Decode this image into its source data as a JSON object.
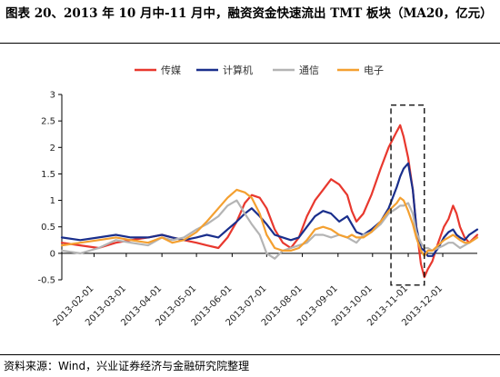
{
  "title": "图表 20、2013 年 10 月中-11 月中，融资资金快速流出 TMT 板块（MA20，亿元）",
  "source": "资料来源：Wind，兴业证券经济与金融研究院整理",
  "chart_data": {
    "type": "line",
    "title": "",
    "xlabel": "",
    "ylabel": "",
    "ylim": [
      -0.5,
      3
    ],
    "yticks": [
      -0.5,
      0,
      0.5,
      1,
      1.5,
      2,
      2.5,
      3
    ],
    "ytick_labels": [
      "-0.5",
      "0",
      "0.5",
      "1",
      "1.5",
      "2",
      "2.5",
      "3"
    ],
    "x_start": "2013-01-04",
    "x_end": "2013-12-31",
    "xticks": [
      "2013-02-01",
      "2013-03-01",
      "2013-04-01",
      "2013-05-01",
      "2013-06-01",
      "2013-07-01",
      "2013-08-01",
      "2013-09-01",
      "2013-10-01",
      "2013-11-01",
      "2013-12-01"
    ],
    "legend_position": "top-center",
    "grid": false,
    "annotation": {
      "type": "dashed-box",
      "x_from": "2013-10-17",
      "x_to": "2013-11-15",
      "y_from": -0.6,
      "y_to": 2.8
    },
    "series": [
      {
        "name": "传媒",
        "color": "#e8382e",
        "points": [
          [
            "2013-01-04",
            0.2
          ],
          [
            "2013-01-20",
            0.15
          ],
          [
            "2013-02-05",
            0.1
          ],
          [
            "2013-02-20",
            0.2
          ],
          [
            "2013-03-05",
            0.25
          ],
          [
            "2013-03-20",
            0.3
          ],
          [
            "2013-04-01",
            0.35
          ],
          [
            "2013-04-10",
            0.3
          ],
          [
            "2013-04-20",
            0.25
          ],
          [
            "2013-05-01",
            0.2
          ],
          [
            "2013-05-10",
            0.15
          ],
          [
            "2013-05-20",
            0.1
          ],
          [
            "2013-05-28",
            0.3
          ],
          [
            "2013-06-05",
            0.6
          ],
          [
            "2013-06-12",
            0.95
          ],
          [
            "2013-06-18",
            1.1
          ],
          [
            "2013-06-25",
            1.05
          ],
          [
            "2013-07-01",
            0.85
          ],
          [
            "2013-07-08",
            0.45
          ],
          [
            "2013-07-15",
            0.2
          ],
          [
            "2013-07-22",
            0.1
          ],
          [
            "2013-07-29",
            0.3
          ],
          [
            "2013-08-05",
            0.7
          ],
          [
            "2013-08-12",
            1.0
          ],
          [
            "2013-08-19",
            1.2
          ],
          [
            "2013-08-26",
            1.4
          ],
          [
            "2013-09-02",
            1.3
          ],
          [
            "2013-09-09",
            1.1
          ],
          [
            "2013-09-13",
            0.8
          ],
          [
            "2013-09-17",
            0.6
          ],
          [
            "2013-09-23",
            0.75
          ],
          [
            "2013-09-30",
            1.1
          ],
          [
            "2013-10-08",
            1.6
          ],
          [
            "2013-10-15",
            2.0
          ],
          [
            "2013-10-22",
            2.3
          ],
          [
            "2013-10-25",
            2.42
          ],
          [
            "2013-10-28",
            2.2
          ],
          [
            "2013-11-01",
            1.8
          ],
          [
            "2013-11-05",
            1.2
          ],
          [
            "2013-11-08",
            0.5
          ],
          [
            "2013-11-12",
            -0.2
          ],
          [
            "2013-11-15",
            -0.45
          ],
          [
            "2013-11-18",
            -0.3
          ],
          [
            "2013-11-22",
            -0.15
          ],
          [
            "2013-11-27",
            0.2
          ],
          [
            "2013-12-02",
            0.5
          ],
          [
            "2013-12-06",
            0.65
          ],
          [
            "2013-12-10",
            0.9
          ],
          [
            "2013-12-13",
            0.75
          ],
          [
            "2013-12-16",
            0.5
          ],
          [
            "2013-12-20",
            0.3
          ],
          [
            "2013-12-24",
            0.2
          ],
          [
            "2013-12-31",
            0.35
          ]
        ]
      },
      {
        "name": "计算机",
        "color": "#1a2f8c",
        "points": [
          [
            "2013-01-04",
            0.3
          ],
          [
            "2013-01-20",
            0.25
          ],
          [
            "2013-02-05",
            0.3
          ],
          [
            "2013-02-20",
            0.35
          ],
          [
            "2013-03-05",
            0.3
          ],
          [
            "2013-03-20",
            0.3
          ],
          [
            "2013-04-01",
            0.35
          ],
          [
            "2013-04-10",
            0.3
          ],
          [
            "2013-04-20",
            0.25
          ],
          [
            "2013-05-01",
            0.3
          ],
          [
            "2013-05-10",
            0.35
          ],
          [
            "2013-05-20",
            0.3
          ],
          [
            "2013-05-28",
            0.45
          ],
          [
            "2013-06-05",
            0.6
          ],
          [
            "2013-06-12",
            0.75
          ],
          [
            "2013-06-18",
            0.85
          ],
          [
            "2013-06-25",
            0.7
          ],
          [
            "2013-07-01",
            0.55
          ],
          [
            "2013-07-08",
            0.35
          ],
          [
            "2013-07-15",
            0.3
          ],
          [
            "2013-07-22",
            0.25
          ],
          [
            "2013-07-29",
            0.3
          ],
          [
            "2013-08-05",
            0.5
          ],
          [
            "2013-08-12",
            0.7
          ],
          [
            "2013-08-19",
            0.8
          ],
          [
            "2013-08-26",
            0.75
          ],
          [
            "2013-09-02",
            0.6
          ],
          [
            "2013-09-09",
            0.7
          ],
          [
            "2013-09-13",
            0.55
          ],
          [
            "2013-09-17",
            0.4
          ],
          [
            "2013-09-23",
            0.35
          ],
          [
            "2013-09-30",
            0.45
          ],
          [
            "2013-10-08",
            0.6
          ],
          [
            "2013-10-15",
            0.85
          ],
          [
            "2013-10-22",
            1.25
          ],
          [
            "2013-10-25",
            1.45
          ],
          [
            "2013-10-28",
            1.6
          ],
          [
            "2013-11-01",
            1.7
          ],
          [
            "2013-11-05",
            1.2
          ],
          [
            "2013-11-08",
            0.5
          ],
          [
            "2013-11-12",
            0.1
          ],
          [
            "2013-11-15",
            0.05
          ],
          [
            "2013-11-18",
            -0.05
          ],
          [
            "2013-11-22",
            -0.05
          ],
          [
            "2013-11-27",
            0.1
          ],
          [
            "2013-12-02",
            0.3
          ],
          [
            "2013-12-06",
            0.4
          ],
          [
            "2013-12-10",
            0.45
          ],
          [
            "2013-12-13",
            0.35
          ],
          [
            "2013-12-16",
            0.3
          ],
          [
            "2013-12-20",
            0.25
          ],
          [
            "2013-12-24",
            0.35
          ],
          [
            "2013-12-31",
            0.45
          ]
        ]
      },
      {
        "name": "通信",
        "color": "#b4b4b4",
        "points": [
          [
            "2013-01-04",
            0.05
          ],
          [
            "2013-01-20",
            0.0
          ],
          [
            "2013-02-05",
            0.1
          ],
          [
            "2013-02-20",
            0.25
          ],
          [
            "2013-03-05",
            0.2
          ],
          [
            "2013-03-20",
            0.15
          ],
          [
            "2013-04-01",
            0.3
          ],
          [
            "2013-04-10",
            0.25
          ],
          [
            "2013-04-20",
            0.3
          ],
          [
            "2013-05-01",
            0.45
          ],
          [
            "2013-05-10",
            0.55
          ],
          [
            "2013-05-20",
            0.7
          ],
          [
            "2013-05-28",
            0.9
          ],
          [
            "2013-06-05",
            1.0
          ],
          [
            "2013-06-12",
            0.75
          ],
          [
            "2013-06-18",
            0.55
          ],
          [
            "2013-06-25",
            0.35
          ],
          [
            "2013-07-01",
            0.0
          ],
          [
            "2013-07-08",
            -0.1
          ],
          [
            "2013-07-15",
            0.05
          ],
          [
            "2013-07-22",
            0.1
          ],
          [
            "2013-07-29",
            0.15
          ],
          [
            "2013-08-05",
            0.2
          ],
          [
            "2013-08-12",
            0.35
          ],
          [
            "2013-08-19",
            0.35
          ],
          [
            "2013-08-26",
            0.3
          ],
          [
            "2013-09-02",
            0.35
          ],
          [
            "2013-09-09",
            0.3
          ],
          [
            "2013-09-13",
            0.25
          ],
          [
            "2013-09-17",
            0.2
          ],
          [
            "2013-09-23",
            0.35
          ],
          [
            "2013-09-30",
            0.4
          ],
          [
            "2013-10-08",
            0.55
          ],
          [
            "2013-10-15",
            0.75
          ],
          [
            "2013-10-22",
            0.85
          ],
          [
            "2013-10-25",
            0.9
          ],
          [
            "2013-10-28",
            0.9
          ],
          [
            "2013-11-01",
            0.95
          ],
          [
            "2013-11-05",
            0.75
          ],
          [
            "2013-11-08",
            0.4
          ],
          [
            "2013-11-12",
            0.2
          ],
          [
            "2013-11-15",
            0.1
          ],
          [
            "2013-11-18",
            0.1
          ],
          [
            "2013-11-22",
            0.05
          ],
          [
            "2013-11-27",
            0.1
          ],
          [
            "2013-12-02",
            0.15
          ],
          [
            "2013-12-06",
            0.2
          ],
          [
            "2013-12-10",
            0.2
          ],
          [
            "2013-12-13",
            0.15
          ],
          [
            "2013-12-16",
            0.1
          ],
          [
            "2013-12-20",
            0.15
          ],
          [
            "2013-12-24",
            0.2
          ],
          [
            "2013-12-31",
            0.3
          ]
        ]
      },
      {
        "name": "电子",
        "color": "#f4a030",
        "points": [
          [
            "2013-01-04",
            0.15
          ],
          [
            "2013-01-20",
            0.2
          ],
          [
            "2013-02-05",
            0.25
          ],
          [
            "2013-02-20",
            0.3
          ],
          [
            "2013-03-05",
            0.25
          ],
          [
            "2013-03-20",
            0.2
          ],
          [
            "2013-04-01",
            0.3
          ],
          [
            "2013-04-10",
            0.2
          ],
          [
            "2013-04-20",
            0.25
          ],
          [
            "2013-05-01",
            0.4
          ],
          [
            "2013-05-10",
            0.6
          ],
          [
            "2013-05-20",
            0.85
          ],
          [
            "2013-05-28",
            1.05
          ],
          [
            "2013-06-05",
            1.2
          ],
          [
            "2013-06-12",
            1.15
          ],
          [
            "2013-06-18",
            1.05
          ],
          [
            "2013-06-25",
            0.75
          ],
          [
            "2013-07-01",
            0.35
          ],
          [
            "2013-07-08",
            0.1
          ],
          [
            "2013-07-15",
            0.05
          ],
          [
            "2013-07-22",
            0.05
          ],
          [
            "2013-07-29",
            0.1
          ],
          [
            "2013-08-05",
            0.25
          ],
          [
            "2013-08-12",
            0.45
          ],
          [
            "2013-08-19",
            0.5
          ],
          [
            "2013-08-26",
            0.45
          ],
          [
            "2013-09-02",
            0.35
          ],
          [
            "2013-09-09",
            0.3
          ],
          [
            "2013-09-13",
            0.35
          ],
          [
            "2013-09-17",
            0.3
          ],
          [
            "2013-09-23",
            0.3
          ],
          [
            "2013-09-30",
            0.4
          ],
          [
            "2013-10-08",
            0.6
          ],
          [
            "2013-10-15",
            0.8
          ],
          [
            "2013-10-22",
            0.95
          ],
          [
            "2013-10-25",
            1.05
          ],
          [
            "2013-10-28",
            1.0
          ],
          [
            "2013-11-01",
            0.8
          ],
          [
            "2013-11-05",
            0.55
          ],
          [
            "2013-11-08",
            0.3
          ],
          [
            "2013-11-12",
            0.05
          ],
          [
            "2013-11-15",
            -0.05
          ],
          [
            "2013-11-18",
            0.05
          ],
          [
            "2013-11-22",
            0.05
          ],
          [
            "2013-11-27",
            0.15
          ],
          [
            "2013-12-02",
            0.25
          ],
          [
            "2013-12-06",
            0.3
          ],
          [
            "2013-12-10",
            0.35
          ],
          [
            "2013-12-13",
            0.3
          ],
          [
            "2013-12-16",
            0.25
          ],
          [
            "2013-12-20",
            0.2
          ],
          [
            "2013-12-24",
            0.2
          ],
          [
            "2013-12-31",
            0.3
          ]
        ]
      }
    ]
  }
}
